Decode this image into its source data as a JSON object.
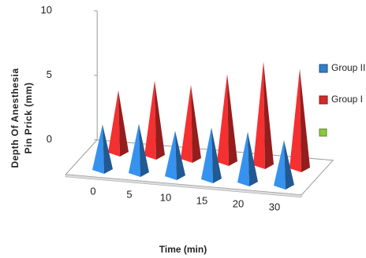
{
  "chart_data": {
    "type": "pyramid3d",
    "y_label_lines": [
      "Depth Of Anesthesia",
      "Pin Prick (mm)"
    ],
    "x_label": "Time (min)",
    "categories": [
      "0",
      "5",
      "10",
      "15",
      "20",
      "30"
    ],
    "series": [
      {
        "name": "Group II",
        "color": "#2f7fd0",
        "values": [
          3.4,
          3.7,
          3.4,
          3.9,
          3.8,
          3.4
        ]
      },
      {
        "name": "Group I",
        "color": "#d42a2a",
        "values": [
          4.7,
          5.7,
          5.6,
          6.7,
          7.9,
          7.6
        ]
      }
    ],
    "ylim": [
      0,
      10
    ],
    "yticks": [
      0,
      5,
      10
    ]
  }
}
